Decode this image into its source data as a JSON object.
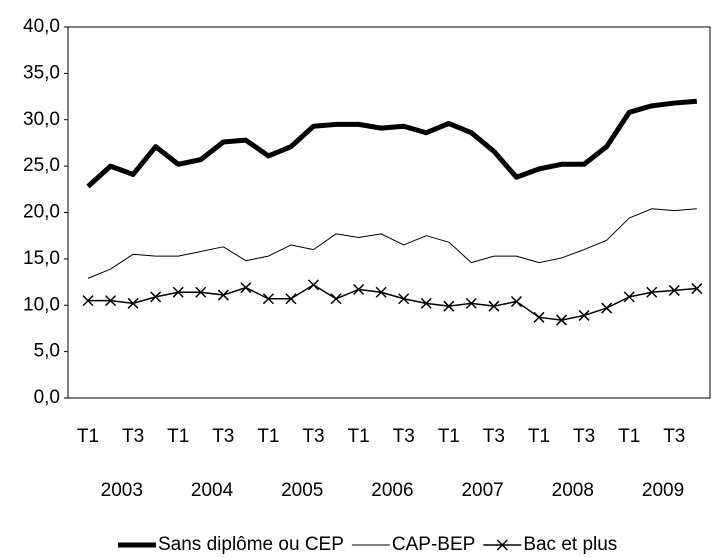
{
  "chart_data": {
    "type": "line",
    "categories": [
      "T1",
      null,
      "T3",
      null,
      "T1",
      null,
      "T3",
      null,
      "T1",
      null,
      "T3",
      null,
      "T1",
      null,
      "T3",
      null,
      "T1",
      null,
      "T3",
      null,
      "T1",
      null,
      "T3",
      null,
      "T1",
      null,
      "T3",
      null
    ],
    "year_labels": [
      "2003",
      "2004",
      "2005",
      "2006",
      "2007",
      "2008",
      "2009"
    ],
    "series": [
      {
        "name": "Sans diplôme ou CEP",
        "color": "#000000",
        "line_width": 5,
        "marker": null,
        "values": [
          22.8,
          25.0,
          24.1,
          27.1,
          25.2,
          25.7,
          27.6,
          27.8,
          26.1,
          27.1,
          29.3,
          29.5,
          29.5,
          29.1,
          29.3,
          28.6,
          29.6,
          28.6,
          26.6,
          23.8,
          24.7,
          25.2,
          25.2,
          27.1,
          30.8,
          31.5,
          31.8,
          32.0
        ]
      },
      {
        "name": "CAP-BEP",
        "color": "#000000",
        "line_width": 1,
        "marker": null,
        "values": [
          12.9,
          13.9,
          15.5,
          15.3,
          15.3,
          15.8,
          16.3,
          14.8,
          15.3,
          16.5,
          16.0,
          17.7,
          17.3,
          17.7,
          16.5,
          17.5,
          16.8,
          14.6,
          15.3,
          15.3,
          14.6,
          15.1,
          16.0,
          17.0,
          19.4,
          20.4,
          20.2,
          20.4
        ]
      },
      {
        "name": "Bac et plus",
        "color": "#000000",
        "line_width": 1.5,
        "marker": "x",
        "values": [
          10.5,
          10.5,
          10.2,
          10.9,
          11.4,
          11.4,
          11.1,
          11.9,
          10.7,
          10.7,
          12.2,
          10.7,
          11.7,
          11.4,
          10.7,
          10.2,
          9.9,
          10.2,
          9.9,
          10.4,
          8.7,
          8.4,
          8.9,
          9.7,
          10.9,
          11.4,
          11.6,
          11.8
        ]
      }
    ],
    "ylim": [
      0,
      40
    ],
    "yticks": [
      {
        "value": 0,
        "label": "0,0"
      },
      {
        "value": 5,
        "label": "5,0"
      },
      {
        "value": 10,
        "label": "10,0"
      },
      {
        "value": 15,
        "label": "15,0"
      },
      {
        "value": 20,
        "label": "20,0"
      },
      {
        "value": 25,
        "label": "25,0"
      },
      {
        "value": 30,
        "label": "30,0"
      },
      {
        "value": 35,
        "label": "35,0"
      },
      {
        "value": 40,
        "label": "40,0"
      }
    ],
    "grid": false,
    "legend": "bottom"
  }
}
